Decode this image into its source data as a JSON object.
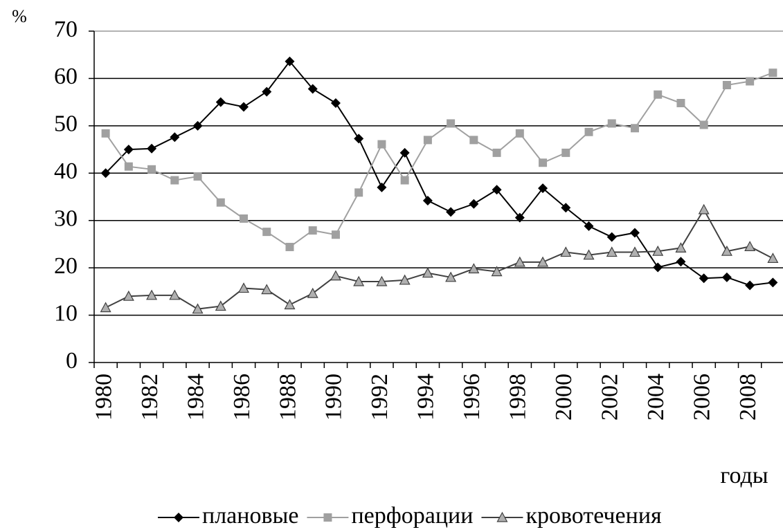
{
  "chart_data": {
    "type": "line",
    "y_label": "%",
    "x_label": "годы",
    "categories": [
      "1980",
      null,
      "1982",
      null,
      "1984",
      null,
      "1986",
      null,
      "1988",
      null,
      "1990",
      null,
      "1992",
      null,
      "1994",
      null,
      "1996",
      null,
      "1998",
      null,
      "2000",
      null,
      "2002",
      null,
      "2004",
      null,
      "2006",
      null,
      "2008",
      null
    ],
    "series": [
      {
        "name": "плановые",
        "color": "#000000",
        "marker": "diamond",
        "values": [
          40,
          45,
          45.2,
          47.6,
          50,
          55,
          54,
          57.2,
          63.6,
          57.8,
          54.8,
          47.3,
          37,
          44.3,
          34.2,
          31.8,
          33.5,
          36.5,
          30.6,
          36.8,
          32.7,
          28.8,
          26.5,
          27.4,
          20.1,
          21.3,
          17.8,
          18,
          16.3,
          16.9
        ]
      },
      {
        "name": "перфорации",
        "color": "#a0a0a0",
        "marker": "square",
        "values": [
          48.4,
          41.4,
          40.8,
          38.5,
          39.3,
          33.8,
          30.4,
          27.6,
          24.4,
          27.9,
          27,
          35.9,
          46.1,
          38.5,
          47,
          50.5,
          47,
          44.3,
          48.4,
          42.2,
          44.3,
          48.7,
          50.5,
          49.5,
          56.6,
          54.8,
          50.2,
          58.6,
          59.4,
          61.2
        ]
      },
      {
        "name": "кровотечения",
        "color": "#404040",
        "marker": "triangle",
        "values": [
          11.6,
          14,
          14.2,
          14.2,
          11.3,
          11.9,
          15.7,
          15.4,
          12.2,
          14.6,
          18.3,
          17.1,
          17.1,
          17.4,
          18.9,
          18,
          19.8,
          19.2,
          21.2,
          21.2,
          23.3,
          22.7,
          23.3,
          23.3,
          23.5,
          24.2,
          32.3,
          23.5,
          24.5,
          22
        ]
      }
    ],
    "ylim": [
      0,
      70
    ],
    "yticks": [
      0,
      10,
      20,
      30,
      40,
      50,
      60,
      70
    ],
    "grid": true,
    "legend": "bottom"
  }
}
